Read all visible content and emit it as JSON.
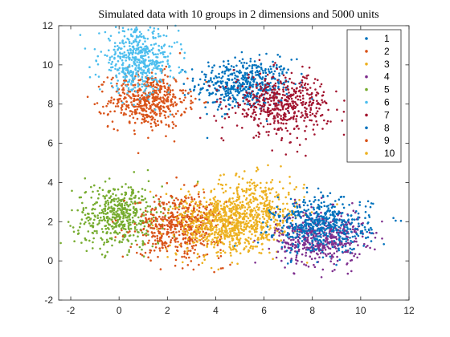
{
  "chart_data": {
    "type": "scatter",
    "title": "Simulated data with 10 groups in 2 dimensions and 5000 units",
    "xlabel": "",
    "ylabel": "",
    "xlim": [
      -2.5,
      12
    ],
    "ylim": [
      -2,
      12
    ],
    "xticks": [
      -2,
      0,
      2,
      4,
      6,
      8,
      10,
      12
    ],
    "yticks": [
      -2,
      0,
      2,
      4,
      6,
      8,
      10,
      12
    ],
    "grid": false,
    "legend_position": "top-right",
    "total_units": 5000,
    "series": [
      {
        "name": "1",
        "color": "#0072BD",
        "center": [
          5.2,
          9.0
        ],
        "spread": [
          1.0,
          0.65
        ],
        "count": 500
      },
      {
        "name": "2",
        "color": "#D95319",
        "center": [
          1.2,
          8.2
        ],
        "spread": [
          0.8,
          0.7
        ],
        "count": 500
      },
      {
        "name": "3",
        "color": "#EDB120",
        "center": [
          5.5,
          2.5
        ],
        "spread": [
          1.1,
          0.9
        ],
        "count": 500
      },
      {
        "name": "4",
        "color": "#7E2F8E",
        "center": [
          8.3,
          1.2
        ],
        "spread": [
          0.9,
          0.7
        ],
        "count": 500
      },
      {
        "name": "5",
        "color": "#77AC30",
        "center": [
          0.0,
          2.3
        ],
        "spread": [
          0.9,
          0.8
        ],
        "count": 500
      },
      {
        "name": "6",
        "color": "#4DBEEE",
        "center": [
          0.8,
          10.2
        ],
        "spread": [
          0.8,
          0.8
        ],
        "count": 500
      },
      {
        "name": "7",
        "color": "#A2142F",
        "center": [
          6.7,
          8.0
        ],
        "spread": [
          1.0,
          0.75
        ],
        "count": 500
      },
      {
        "name": "8",
        "color": "#0072BD",
        "center": [
          8.4,
          1.8
        ],
        "spread": [
          1.0,
          0.7
        ],
        "count": 500
      },
      {
        "name": "9",
        "color": "#D95319",
        "center": [
          2.5,
          1.8
        ],
        "spread": [
          0.9,
          0.8
        ],
        "count": 500
      },
      {
        "name": "10",
        "color": "#EDB120",
        "center": [
          4.2,
          1.8
        ],
        "spread": [
          0.9,
          0.8
        ],
        "count": 500
      }
    ]
  }
}
